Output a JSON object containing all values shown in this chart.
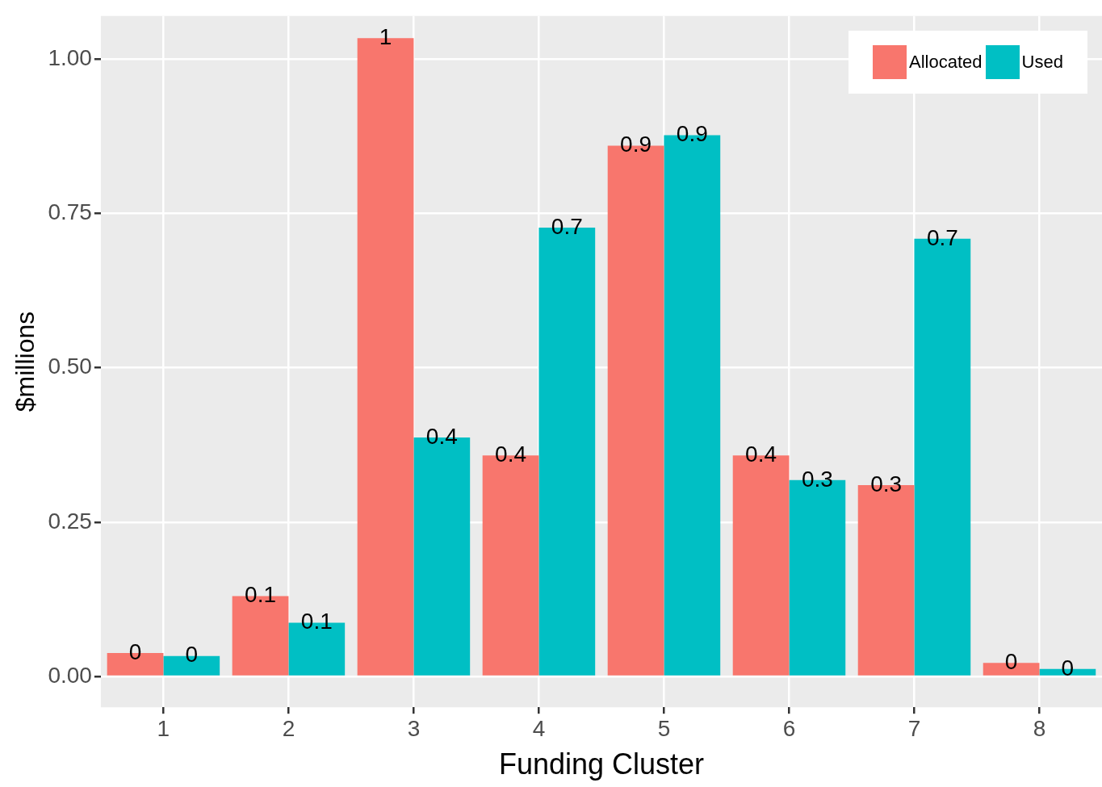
{
  "chart_data": {
    "type": "bar",
    "xlabel": "Funding Cluster",
    "ylabel": "$millions",
    "categories": [
      "1",
      "2",
      "3",
      "4",
      "5",
      "6",
      "7",
      "8"
    ],
    "series": [
      {
        "name": "Allocated",
        "color": "#f8766d",
        "values": [
          0.038,
          0.13,
          1.034,
          0.358,
          0.86,
          0.358,
          0.31,
          0.022
        ],
        "value_labels": [
          "0",
          "0.1",
          "1",
          "0.4",
          "0.9",
          "0.4",
          "0.3",
          "0"
        ]
      },
      {
        "name": "Used",
        "color": "#00bfc4",
        "values": [
          0.033,
          0.087,
          0.387,
          0.727,
          0.877,
          0.318,
          0.709,
          0.012
        ],
        "value_labels": [
          "0",
          "0.1",
          "0.4",
          "0.7",
          "0.9",
          "0.3",
          "0.7",
          "0"
        ]
      }
    ],
    "ylim": [
      -0.05,
      1.07
    ],
    "yticks": [
      {
        "value": 0,
        "label": "0.00"
      },
      {
        "value": 0.25,
        "label": "0.25"
      },
      {
        "value": 0.5,
        "label": "0.50"
      },
      {
        "value": 0.75,
        "label": "0.75"
      },
      {
        "value": 1,
        "label": "1.00"
      }
    ],
    "grid": true,
    "legend": "top right"
  }
}
